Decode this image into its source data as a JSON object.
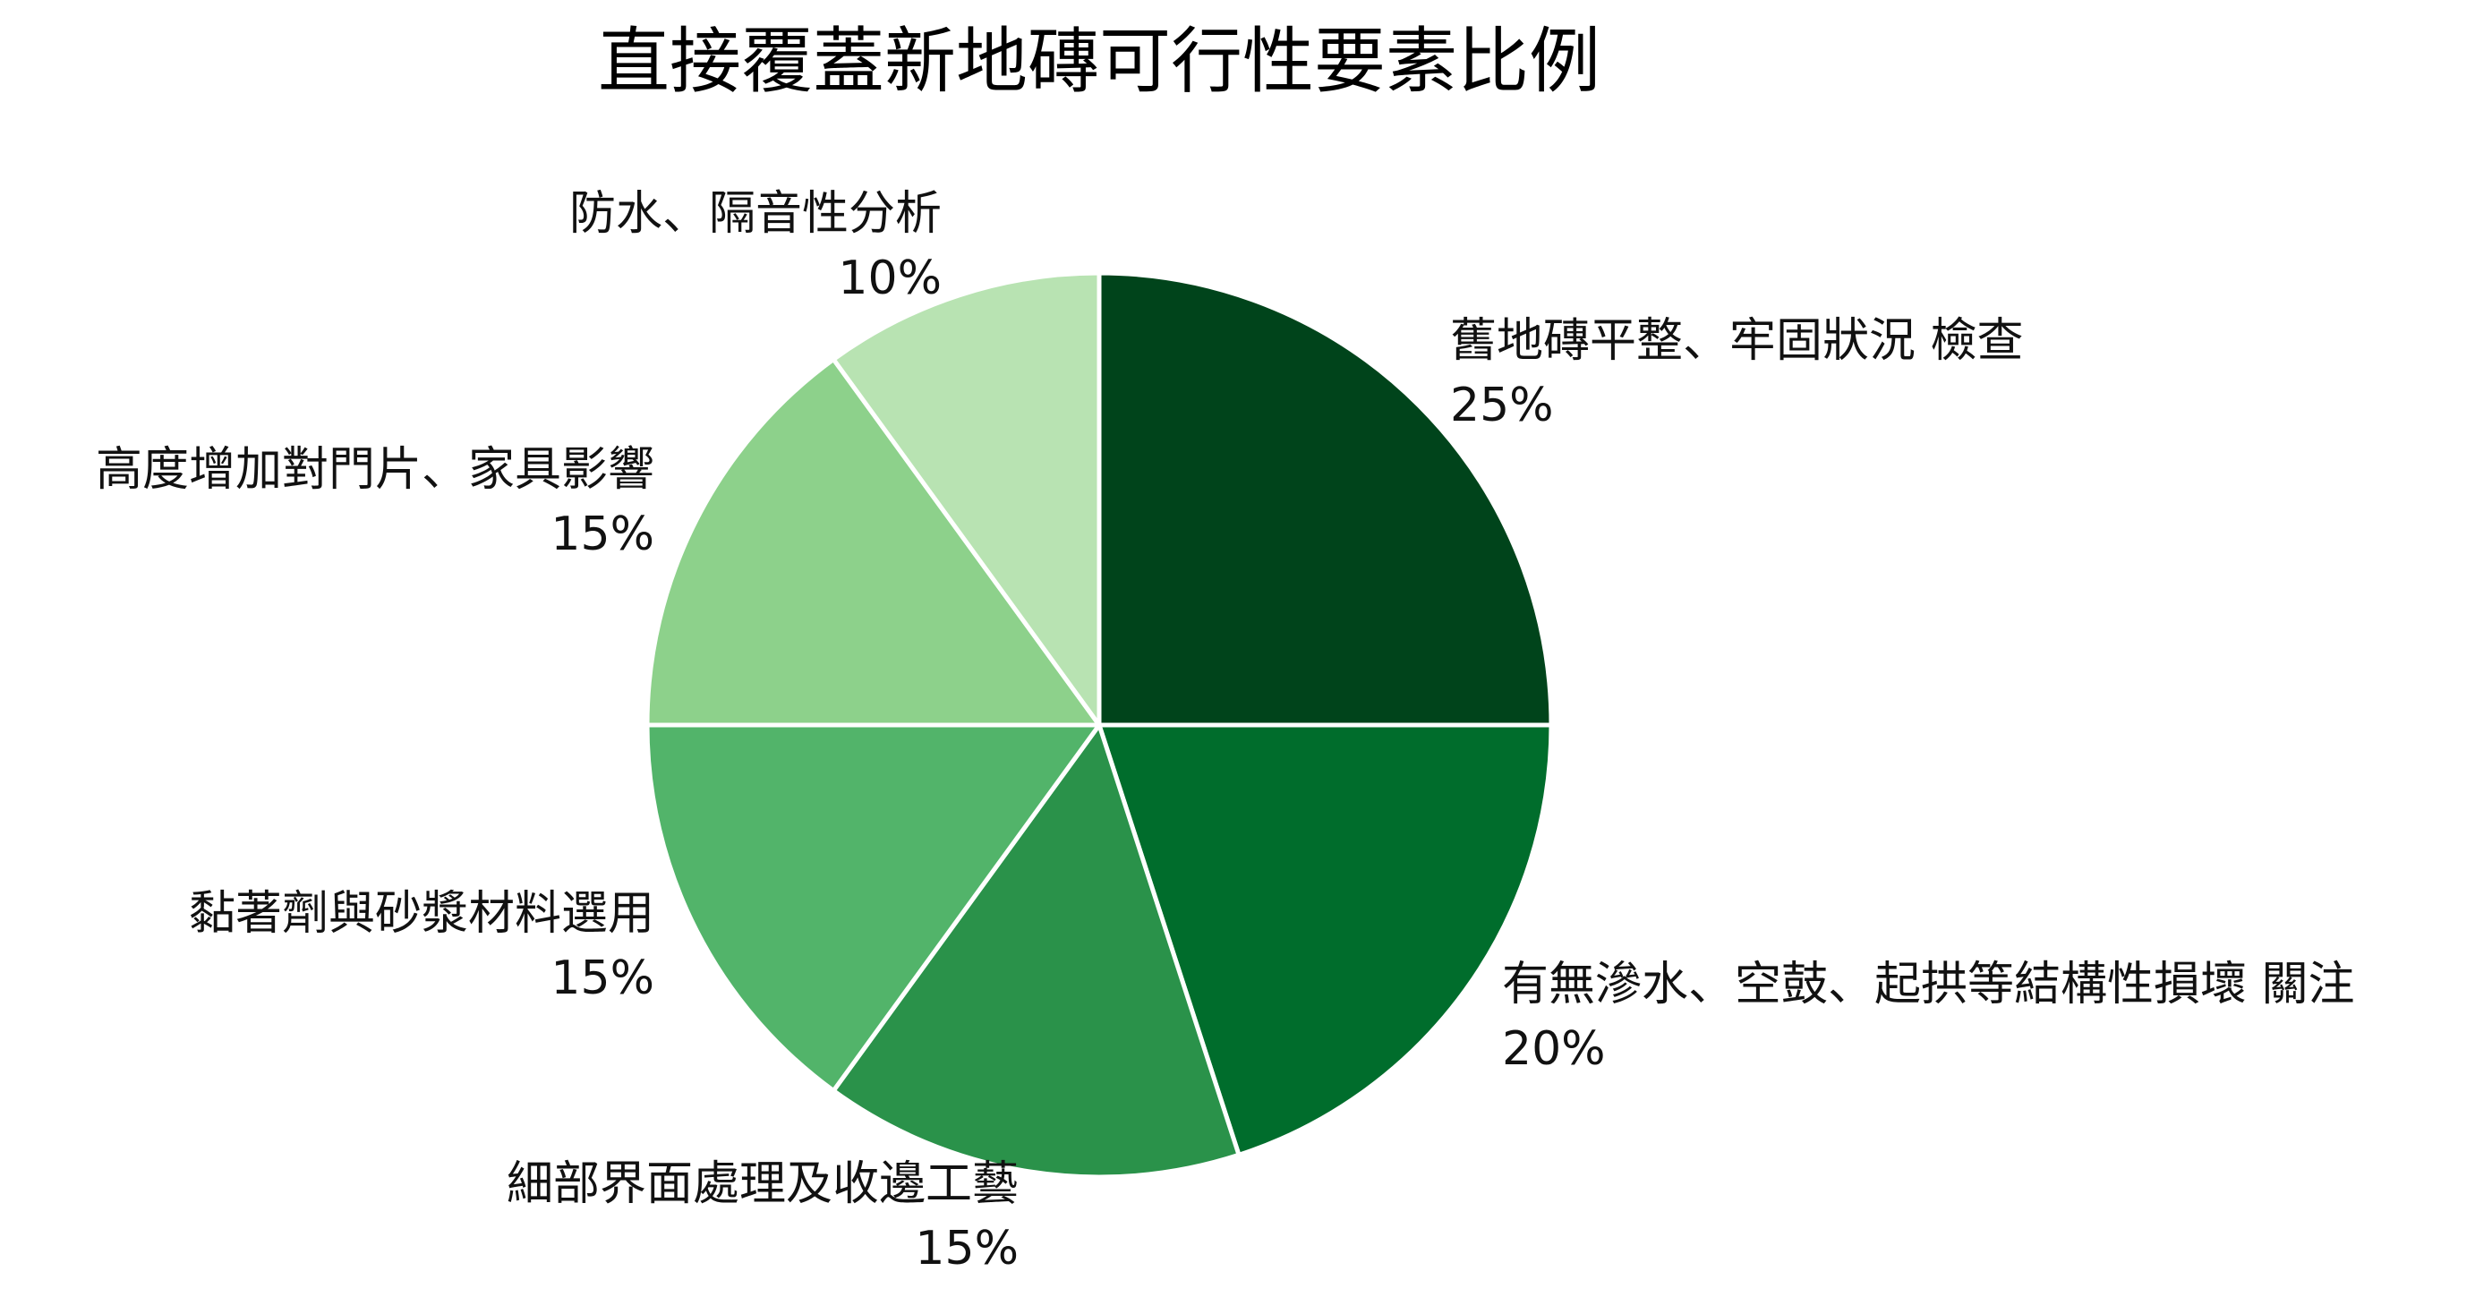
{
  "chart_data": {
    "type": "pie",
    "title": "直接覆蓋新地磚可行性要素比例",
    "start_angle_deg": 90,
    "direction": "clockwise",
    "legend": "none",
    "slices": [
      {
        "label": "舊地磚平整、牢固狀況 檢查",
        "value": 25,
        "value_label": "25%",
        "color": "#00441b"
      },
      {
        "label": "有無滲水、空鼓、起拱等結構性損壞 關注",
        "value": 20,
        "value_label": "20%",
        "color": "#006d2c"
      },
      {
        "label": "細部界面處理及收邊工藝",
        "value": 15,
        "value_label": "15%",
        "color": "#2a924a"
      },
      {
        "label": "黏著劑與砂漿材料選用",
        "value": 15,
        "value_label": "15%",
        "color": "#52b46a"
      },
      {
        "label": "高度增加對門片、家具影響",
        "value": 15,
        "value_label": "15%",
        "color": "#8dd18b"
      },
      {
        "label": "防水、隔音性分析",
        "value": 10,
        "value_label": "10%",
        "color": "#b8e3b2"
      }
    ]
  }
}
